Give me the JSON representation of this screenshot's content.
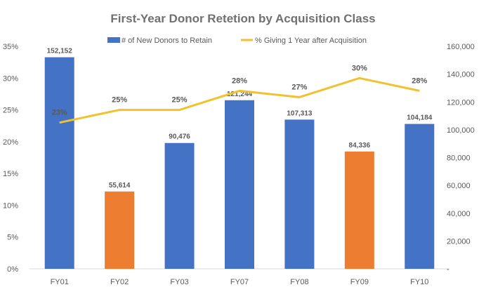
{
  "chart_data": {
    "type": "bar",
    "title": "First-Year Donor Retetion by Acquisition Class",
    "categories": [
      "FY01",
      "FY02",
      "FY03",
      "FY07",
      "FY08",
      "FY09",
      "FY10"
    ],
    "series": [
      {
        "name": "# of New Donors to Retain",
        "type": "bar",
        "axis": "right",
        "values": [
          152152,
          55614,
          90476,
          121244,
          107313,
          84336,
          104184
        ],
        "labels": [
          "152,152",
          "55,614",
          "90,476",
          "121,244",
          "107,313",
          "84,336",
          "104,184"
        ],
        "colors": [
          "#4472C4",
          "#ED7D31",
          "#4472C4",
          "#4472C4",
          "#4472C4",
          "#ED7D31",
          "#4472C4"
        ]
      },
      {
        "name": "% Giving 1 Year after Acquisition",
        "type": "line",
        "axis": "left",
        "values": [
          0.23,
          0.25,
          0.25,
          0.28,
          0.27,
          0.3,
          0.28
        ],
        "labels": [
          "23%",
          "25%",
          "25%",
          "28%",
          "27%",
          "30%",
          "28%"
        ],
        "color": "#F2C12E"
      }
    ],
    "left_axis": {
      "ylim": [
        0,
        0.35
      ],
      "ticks": [
        "0%",
        "5%",
        "10%",
        "15%",
        "20%",
        "25%",
        "30%",
        "35%"
      ]
    },
    "right_axis": {
      "ylim": [
        0,
        160000
      ],
      "ticks": [
        "-",
        "20,000",
        "40,000",
        "60,000",
        "80,000",
        "100,000",
        "120,000",
        "140,000",
        "160,000"
      ]
    },
    "legend_position": "top",
    "grid": false
  }
}
